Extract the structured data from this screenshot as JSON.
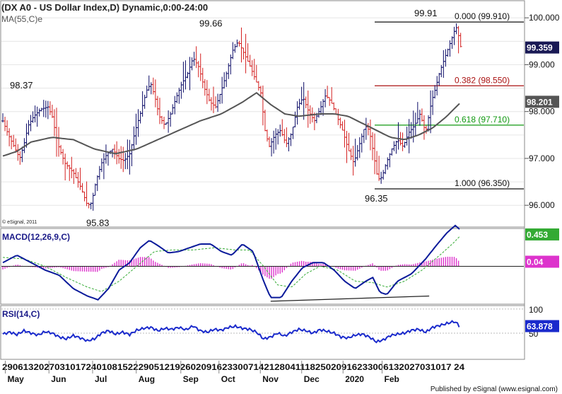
{
  "window_title": "(DX A0 - US Dollar Index,D) Dynamic,0:00-24:00",
  "footer": "Published by eSignal (www.esignal.com)",
  "copyright": "© eSignal, 2011",
  "colors": {
    "up_bar": "#0a0a66",
    "down_bar": "#d42020",
    "ma": "#555555",
    "macd_line": "#0a1a9a",
    "macd_signal": "#33aa33",
    "histogram": "#dd33cc",
    "rsi": "#1a2acc",
    "fib_382": "#aa1111",
    "fib_618": "#119911",
    "price_tag": "#1a1a55",
    "ma_tag": "#555555",
    "macd_tag": "#33aa33",
    "hist_tag": "#dd33cc",
    "rsi_tag": "#1a2acc"
  },
  "chart_data": [
    {
      "type": "candlestick",
      "name": "price",
      "legend": "MA(55,C)e",
      "ylim": [
        95.55,
        100.35
      ],
      "y_ticks": [
        "100.000",
        "99.000",
        "98.000",
        "97.000",
        "96.000"
      ],
      "y_tick_values": [
        100,
        99,
        98,
        97,
        96
      ],
      "last_price": "99.359",
      "ma_value": "98.201",
      "annotations": [
        {
          "text": "98.37",
          "value": 98.37
        },
        {
          "text": "95.83",
          "value": 95.83
        },
        {
          "text": "99.66",
          "value": 99.66
        },
        {
          "text": "99.91",
          "value": 99.91
        },
        {
          "text": "96.35",
          "value": 96.35
        }
      ],
      "fib_levels": [
        {
          "label": "0.000 (99.910)",
          "value": 99.91
        },
        {
          "label": "0.382 (98.550)",
          "value": 98.55
        },
        {
          "label": "0.618 (97.710)",
          "value": 97.71
        },
        {
          "label": "1.000 (96.350)",
          "value": 96.35
        }
      ]
    },
    {
      "type": "line",
      "name": "MACD",
      "legend": "MACD(12,26,9,C)",
      "ylim": [
        -0.5,
        0.5
      ],
      "macd_value": "0.453",
      "hist_value": "0.04"
    },
    {
      "type": "line",
      "name": "RSI",
      "legend": "RSI(14,C)",
      "ylim": [
        0,
        100
      ],
      "y_ticks": [
        "100",
        "50"
      ],
      "y_tick_values": [
        100,
        50
      ],
      "last_value": "63.878"
    }
  ],
  "x_axis": {
    "day_labels": "29061320270310172401081522290512192602091623300714212804111825020916233006132027031017 24",
    "months": [
      {
        "label": "May",
        "fraction": 0.01
      },
      {
        "label": "Jun",
        "fraction": 0.105
      },
      {
        "label": "Jul",
        "fraction": 0.2
      },
      {
        "label": "Aug",
        "fraction": 0.295
      },
      {
        "label": "Sep",
        "fraction": 0.392
      },
      {
        "label": "Oct",
        "fraction": 0.475
      },
      {
        "label": "Nov",
        "fraction": 0.565
      },
      {
        "label": "Dec",
        "fraction": 0.655
      },
      {
        "label": "2020",
        "fraction": 0.745
      },
      {
        "label": "Feb",
        "fraction": 0.83
      }
    ]
  },
  "price_path": [
    [
      0,
      97.8
    ],
    [
      8,
      97.5
    ],
    [
      16,
      97.25
    ],
    [
      24,
      97.0
    ],
    [
      30,
      97.3
    ],
    [
      36,
      97.7
    ],
    [
      44,
      97.9
    ],
    [
      54,
      98.05
    ],
    [
      64,
      98.1
    ],
    [
      70,
      97.9
    ],
    [
      78,
      97.3
    ],
    [
      88,
      96.9
    ],
    [
      100,
      96.7
    ],
    [
      110,
      96.4
    ],
    [
      120,
      96.0
    ],
    [
      126,
      96.05
    ],
    [
      132,
      96.5
    ],
    [
      140,
      96.9
    ],
    [
      148,
      97.1
    ],
    [
      156,
      97.2
    ],
    [
      164,
      97.0
    ],
    [
      172,
      96.95
    ],
    [
      180,
      97.1
    ],
    [
      188,
      97.6
    ],
    [
      196,
      98.0
    ],
    [
      204,
      98.45
    ],
    [
      210,
      98.6
    ],
    [
      216,
      98.3
    ],
    [
      222,
      97.9
    ],
    [
      230,
      97.7
    ],
    [
      238,
      97.95
    ],
    [
      246,
      98.3
    ],
    [
      254,
      98.6
    ],
    [
      262,
      98.8
    ],
    [
      270,
      99.15
    ],
    [
      278,
      98.95
    ],
    [
      286,
      98.5
    ],
    [
      294,
      98.2
    ],
    [
      302,
      98.1
    ],
    [
      310,
      98.45
    ],
    [
      318,
      98.85
    ],
    [
      326,
      99.3
    ],
    [
      334,
      99.5
    ],
    [
      342,
      99.25
    ],
    [
      350,
      99.0
    ],
    [
      358,
      98.7
    ],
    [
      366,
      98.4
    ],
    [
      372,
      97.6
    ],
    [
      378,
      97.25
    ],
    [
      386,
      97.5
    ],
    [
      394,
      97.6
    ],
    [
      402,
      97.3
    ],
    [
      410,
      97.55
    ],
    [
      418,
      98.1
    ],
    [
      426,
      98.3
    ],
    [
      434,
      98.0
    ],
    [
      442,
      97.8
    ],
    [
      450,
      98.05
    ],
    [
      458,
      98.35
    ],
    [
      466,
      98.2
    ],
    [
      474,
      97.9
    ],
    [
      482,
      97.6
    ],
    [
      490,
      97.2
    ],
    [
      498,
      96.9
    ],
    [
      506,
      97.3
    ],
    [
      514,
      97.7
    ],
    [
      520,
      97.6
    ],
    [
      526,
      97.1
    ],
    [
      532,
      96.55
    ],
    [
      538,
      96.6
    ],
    [
      544,
      96.9
    ],
    [
      552,
      97.2
    ],
    [
      560,
      97.4
    ],
    [
      568,
      97.25
    ],
    [
      576,
      97.55
    ],
    [
      584,
      97.7
    ],
    [
      592,
      97.95
    ],
    [
      600,
      97.55
    ],
    [
      608,
      98.2
    ],
    [
      614,
      98.5
    ],
    [
      620,
      98.85
    ],
    [
      626,
      99.1
    ],
    [
      632,
      99.35
    ],
    [
      638,
      99.6
    ],
    [
      643,
      99.82
    ],
    [
      647,
      99.6
    ],
    [
      650,
      99.359
    ]
  ],
  "ma_path": [
    [
      0,
      97.05
    ],
    [
      20,
      97.15
    ],
    [
      40,
      97.35
    ],
    [
      70,
      97.45
    ],
    [
      100,
      97.4
    ],
    [
      130,
      97.2
    ],
    [
      160,
      97.1
    ],
    [
      190,
      97.2
    ],
    [
      220,
      97.4
    ],
    [
      250,
      97.6
    ],
    [
      280,
      97.8
    ],
    [
      310,
      97.95
    ],
    [
      340,
      98.2
    ],
    [
      360,
      98.4
    ],
    [
      380,
      98.15
    ],
    [
      400,
      97.95
    ],
    [
      420,
      97.9
    ],
    [
      450,
      97.95
    ],
    [
      470,
      97.95
    ],
    [
      490,
      97.9
    ],
    [
      510,
      97.75
    ],
    [
      530,
      97.6
    ],
    [
      550,
      97.45
    ],
    [
      570,
      97.4
    ],
    [
      590,
      97.5
    ],
    [
      610,
      97.65
    ],
    [
      630,
      97.9
    ],
    [
      650,
      98.201
    ]
  ],
  "macd_path": [
    [
      0,
      0.05
    ],
    [
      20,
      0.15
    ],
    [
      40,
      0.05
    ],
    [
      60,
      -0.05
    ],
    [
      80,
      -0.12
    ],
    [
      100,
      -0.3
    ],
    [
      120,
      -0.4
    ],
    [
      135,
      -0.45
    ],
    [
      150,
      -0.3
    ],
    [
      165,
      -0.05
    ],
    [
      180,
      0.05
    ],
    [
      195,
      0.25
    ],
    [
      208,
      0.35
    ],
    [
      220,
      0.28
    ],
    [
      235,
      0.18
    ],
    [
      250,
      0.2
    ],
    [
      265,
      0.25
    ],
    [
      280,
      0.3
    ],
    [
      295,
      0.3
    ],
    [
      310,
      0.2
    ],
    [
      325,
      0.15
    ],
    [
      340,
      0.3
    ],
    [
      355,
      0.2
    ],
    [
      370,
      -0.2
    ],
    [
      380,
      -0.42
    ],
    [
      395,
      -0.42
    ],
    [
      410,
      -0.2
    ],
    [
      425,
      -0.02
    ],
    [
      440,
      0.05
    ],
    [
      455,
      0.05
    ],
    [
      470,
      -0.05
    ],
    [
      485,
      -0.2
    ],
    [
      500,
      -0.3
    ],
    [
      515,
      -0.2
    ],
    [
      525,
      -0.15
    ],
    [
      535,
      -0.35
    ],
    [
      545,
      -0.38
    ],
    [
      560,
      -0.2
    ],
    [
      580,
      -0.1
    ],
    [
      600,
      0.1
    ],
    [
      615,
      0.28
    ],
    [
      630,
      0.45
    ],
    [
      642,
      0.55
    ],
    [
      648,
      0.5
    ]
  ],
  "macd_signal_path": [
    [
      0,
      0.12
    ],
    [
      30,
      0.1
    ],
    [
      60,
      0.0
    ],
    [
      90,
      -0.15
    ],
    [
      120,
      -0.28
    ],
    [
      140,
      -0.34
    ],
    [
      165,
      -0.2
    ],
    [
      190,
      0.0
    ],
    [
      215,
      0.2
    ],
    [
      240,
      0.22
    ],
    [
      270,
      0.22
    ],
    [
      300,
      0.25
    ],
    [
      330,
      0.22
    ],
    [
      350,
      0.22
    ],
    [
      370,
      0.0
    ],
    [
      390,
      -0.25
    ],
    [
      410,
      -0.28
    ],
    [
      430,
      -0.1
    ],
    [
      450,
      0.0
    ],
    [
      475,
      -0.05
    ],
    [
      500,
      -0.2
    ],
    [
      525,
      -0.22
    ],
    [
      545,
      -0.28
    ],
    [
      570,
      -0.2
    ],
    [
      595,
      -0.05
    ],
    [
      620,
      0.15
    ],
    [
      640,
      0.32
    ],
    [
      648,
      0.4
    ]
  ],
  "rsi_path": [
    [
      0,
      48
    ],
    [
      10,
      52
    ],
    [
      20,
      47
    ],
    [
      30,
      55
    ],
    [
      40,
      50
    ],
    [
      50,
      46
    ],
    [
      60,
      53
    ],
    [
      70,
      50
    ],
    [
      80,
      42
    ],
    [
      90,
      38
    ],
    [
      100,
      45
    ],
    [
      110,
      40
    ],
    [
      120,
      34
    ],
    [
      130,
      38
    ],
    [
      140,
      50
    ],
    [
      150,
      55
    ],
    [
      160,
      48
    ],
    [
      170,
      52
    ],
    [
      180,
      47
    ],
    [
      190,
      56
    ],
    [
      200,
      60
    ],
    [
      210,
      62
    ],
    [
      220,
      55
    ],
    [
      230,
      60
    ],
    [
      240,
      58
    ],
    [
      250,
      62
    ],
    [
      260,
      57
    ],
    [
      270,
      65
    ],
    [
      280,
      55
    ],
    [
      290,
      52
    ],
    [
      300,
      58
    ],
    [
      310,
      56
    ],
    [
      320,
      62
    ],
    [
      330,
      64
    ],
    [
      340,
      60
    ],
    [
      350,
      58
    ],
    [
      360,
      52
    ],
    [
      370,
      38
    ],
    [
      380,
      42
    ],
    [
      390,
      50
    ],
    [
      400,
      44
    ],
    [
      410,
      52
    ],
    [
      420,
      58
    ],
    [
      430,
      55
    ],
    [
      440,
      50
    ],
    [
      450,
      57
    ],
    [
      460,
      54
    ],
    [
      470,
      50
    ],
    [
      480,
      42
    ],
    [
      490,
      40
    ],
    [
      500,
      46
    ],
    [
      510,
      48
    ],
    [
      520,
      42
    ],
    [
      530,
      32
    ],
    [
      540,
      36
    ],
    [
      550,
      45
    ],
    [
      560,
      48
    ],
    [
      570,
      50
    ],
    [
      580,
      56
    ],
    [
      590,
      58
    ],
    [
      600,
      52
    ],
    [
      610,
      62
    ],
    [
      620,
      66
    ],
    [
      630,
      70
    ],
    [
      640,
      74
    ],
    [
      645,
      70
    ],
    [
      648,
      63.878
    ]
  ],
  "macd_support_line": [
    [
      380,
      -0.47
    ],
    [
      605,
      -0.4
    ]
  ]
}
